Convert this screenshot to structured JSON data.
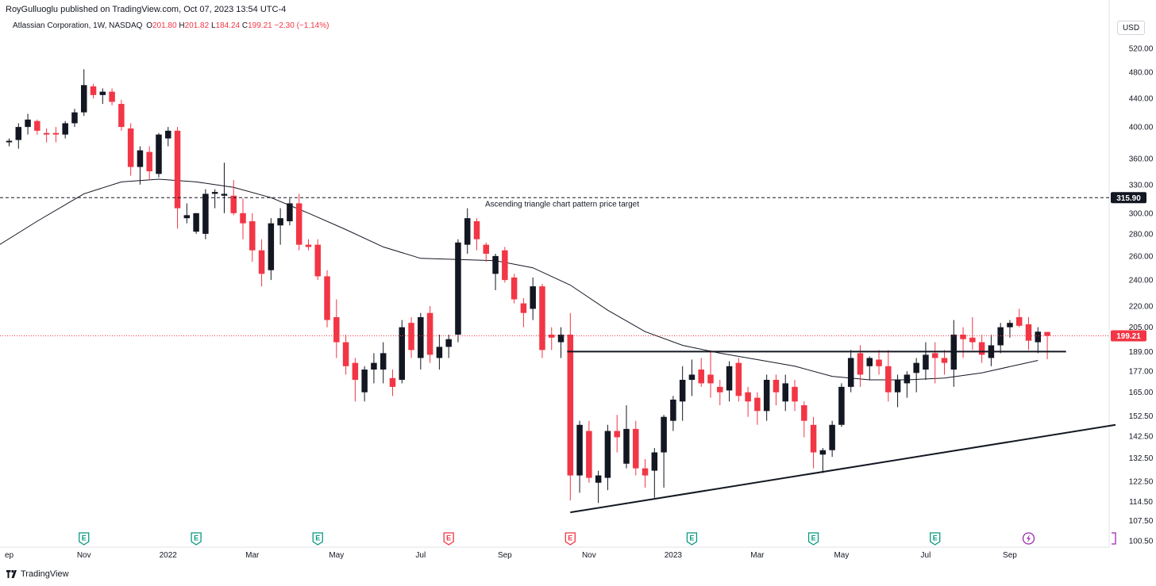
{
  "header": {
    "publisher": "RoyGulluoglu published on TradingView.com, Oct 07, 2023 13:54 UTC-4"
  },
  "legend": {
    "symbol": "Atlassian Corporation, 1W, NASDAQ",
    "open_label": "O",
    "open": "201.80",
    "high_label": "H",
    "high": "201.82",
    "low_label": "L",
    "low": "184.24",
    "close_label": "C",
    "close": "199.21",
    "change": "−2.30 (−1.14%)"
  },
  "currency_button": "USD",
  "footer": {
    "brand": "TradingView"
  },
  "colors": {
    "up": "#131722",
    "down": "#f23645",
    "ma": "#131722",
    "event_green": "#089981",
    "event_red": "#f23645",
    "event_purple": "#9c27b0"
  },
  "chart_data": {
    "type": "candlestick",
    "scale": "log",
    "ylim": [
      98,
      560
    ],
    "y_ticks": [
      "520.00",
      "480.00",
      "440.00",
      "400.00",
      "360.00",
      "330.00",
      "300.00",
      "280.00",
      "260.00",
      "240.00",
      "220.00",
      "205.00",
      "189.00",
      "177.00",
      "165.00",
      "152.50",
      "142.50",
      "132.50",
      "122.50",
      "114.50",
      "107.50",
      "100.50"
    ],
    "x_ticks": [
      {
        "i": 0,
        "label": "ep"
      },
      {
        "i": 8,
        "label": "Nov"
      },
      {
        "i": 17,
        "label": "2022"
      },
      {
        "i": 26,
        "label": "Mar"
      },
      {
        "i": 35,
        "label": "May"
      },
      {
        "i": 44,
        "label": "Jul"
      },
      {
        "i": 53,
        "label": "Sep"
      },
      {
        "i": 62,
        "label": "Nov"
      },
      {
        "i": 71,
        "label": "2023"
      },
      {
        "i": 80,
        "label": "Mar"
      },
      {
        "i": 89,
        "label": "May"
      },
      {
        "i": 98,
        "label": "Jul"
      },
      {
        "i": 107,
        "label": "Sep"
      }
    ],
    "candles": [
      [
        380,
        385,
        375,
        382
      ],
      [
        383,
        405,
        372,
        400
      ],
      [
        400,
        418,
        390,
        410
      ],
      [
        408,
        410,
        390,
        395
      ],
      [
        392,
        398,
        380,
        390
      ],
      [
        392,
        400,
        380,
        390
      ],
      [
        390,
        408,
        385,
        405
      ],
      [
        405,
        425,
        400,
        420
      ],
      [
        420,
        485,
        415,
        460
      ],
      [
        458,
        462,
        440,
        445
      ],
      [
        445,
        455,
        432,
        450
      ],
      [
        450,
        455,
        430,
        435
      ],
      [
        432,
        438,
        395,
        400
      ],
      [
        398,
        405,
        340,
        350
      ],
      [
        350,
        375,
        330,
        370
      ],
      [
        368,
        375,
        335,
        345
      ],
      [
        342,
        392,
        338,
        390
      ],
      [
        385,
        400,
        375,
        395
      ],
      [
        395,
        400,
        285,
        305
      ],
      [
        295,
        310,
        290,
        298
      ],
      [
        282,
        300,
        280,
        300
      ],
      [
        280,
        325,
        275,
        320
      ],
      [
        320,
        325,
        305,
        322
      ],
      [
        318,
        355,
        300,
        320
      ],
      [
        318,
        335,
        298,
        300
      ],
      [
        300,
        315,
        275,
        290
      ],
      [
        292,
        300,
        255,
        265
      ],
      [
        265,
        275,
        235,
        245
      ],
      [
        248,
        295,
        240,
        290
      ],
      [
        288,
        305,
        270,
        295
      ],
      [
        292,
        315,
        288,
        310
      ],
      [
        310,
        320,
        265,
        270
      ],
      [
        270,
        275,
        265,
        268
      ],
      [
        270,
        275,
        240,
        243
      ],
      [
        243,
        248,
        205,
        210
      ],
      [
        212,
        225,
        185,
        195
      ],
      [
        195,
        200,
        175,
        180
      ],
      [
        182,
        185,
        160,
        172
      ],
      [
        165,
        180,
        160,
        178
      ],
      [
        178,
        188,
        170,
        182
      ],
      [
        178,
        195,
        170,
        188
      ],
      [
        173,
        178,
        163,
        168
      ],
      [
        172,
        210,
        170,
        205
      ],
      [
        208,
        212,
        185,
        190
      ],
      [
        185,
        215,
        178,
        212
      ],
      [
        215,
        220,
        182,
        187
      ],
      [
        185,
        200,
        178,
        192
      ],
      [
        192,
        200,
        185,
        197
      ],
      [
        200,
        275,
        195,
        272
      ],
      [
        270,
        305,
        262,
        295
      ],
      [
        292,
        295,
        265,
        275
      ],
      [
        270,
        272,
        255,
        262
      ],
      [
        245,
        262,
        232,
        260
      ],
      [
        265,
        268,
        238,
        240
      ],
      [
        242,
        245,
        222,
        225
      ],
      [
        222,
        226,
        205,
        215
      ],
      [
        218,
        242,
        210,
        235
      ],
      [
        235,
        237,
        185,
        190
      ],
      [
        200,
        205,
        190,
        198
      ],
      [
        195,
        205,
        185,
        200
      ],
      [
        200,
        215,
        115,
        125
      ],
      [
        125,
        150,
        118,
        148
      ],
      [
        145,
        150,
        122,
        124
      ],
      [
        122,
        127,
        114,
        125
      ],
      [
        124,
        148,
        119,
        145
      ],
      [
        145,
        153,
        135,
        142
      ],
      [
        130,
        158,
        128,
        146
      ],
      [
        146,
        150,
        125,
        128
      ],
      [
        128,
        132,
        120,
        125
      ],
      [
        127,
        137,
        116,
        135
      ],
      [
        135,
        153,
        120,
        152
      ],
      [
        150,
        163,
        145,
        161
      ],
      [
        160,
        180,
        150,
        172
      ],
      [
        172,
        184,
        163,
        175
      ],
      [
        178,
        185,
        168,
        170
      ],
      [
        175,
        190,
        162,
        170
      ],
      [
        168,
        172,
        158,
        165
      ],
      [
        166,
        183,
        160,
        180
      ],
      [
        182,
        185,
        160,
        163
      ],
      [
        165,
        168,
        152,
        160
      ],
      [
        162,
        165,
        148,
        155
      ],
      [
        155,
        175,
        150,
        172
      ],
      [
        172,
        175,
        158,
        165
      ],
      [
        160,
        175,
        155,
        170
      ],
      [
        168,
        172,
        155,
        160
      ],
      [
        158,
        160,
        142,
        150
      ],
      [
        148,
        152,
        128,
        135
      ],
      [
        134,
        137,
        126,
        136
      ],
      [
        136,
        150,
        133,
        148
      ],
      [
        148,
        170,
        147,
        168
      ],
      [
        168,
        190,
        165,
        185
      ],
      [
        188,
        193,
        168,
        175
      ],
      [
        180,
        186,
        172,
        185
      ],
      [
        184,
        190,
        175,
        180
      ],
      [
        180,
        190,
        160,
        165
      ],
      [
        165,
        175,
        157,
        172
      ],
      [
        170,
        177,
        162,
        175
      ],
      [
        176,
        185,
        165,
        182
      ],
      [
        178,
        195,
        172,
        187
      ],
      [
        188,
        195,
        170,
        185
      ],
      [
        185,
        190,
        175,
        182
      ],
      [
        178,
        210,
        168,
        200
      ],
      [
        200,
        205,
        185,
        197
      ],
      [
        198,
        212,
        190,
        195
      ],
      [
        195,
        200,
        182,
        187
      ],
      [
        185,
        200,
        180,
        193
      ],
      [
        193,
        208,
        188,
        205
      ],
      [
        205,
        210,
        198,
        208
      ],
      [
        212,
        218,
        205,
        206
      ],
      [
        207,
        212,
        190,
        196
      ],
      [
        195,
        205,
        188,
        202
      ],
      [
        201.8,
        201.82,
        184.24,
        199.21
      ]
    ],
    "ma_period": 30,
    "ma": [
      [
        -2,
        265
      ],
      [
        3,
        292
      ],
      [
        8,
        320
      ],
      [
        12,
        333
      ],
      [
        16,
        336
      ],
      [
        20,
        333
      ],
      [
        24,
        327
      ],
      [
        28,
        316
      ],
      [
        32,
        300
      ],
      [
        36,
        284
      ],
      [
        40,
        268
      ],
      [
        44,
        258
      ],
      [
        48,
        257
      ],
      [
        52,
        256
      ],
      [
        56,
        250
      ],
      [
        60,
        236
      ],
      [
        64,
        217
      ],
      [
        68,
        202
      ],
      [
        72,
        193
      ],
      [
        76,
        188
      ],
      [
        80,
        184
      ],
      [
        84,
        180
      ],
      [
        88,
        174
      ],
      [
        92,
        172
      ],
      [
        96,
        172
      ],
      [
        100,
        173
      ],
      [
        104,
        176
      ],
      [
        108,
        181
      ],
      [
        110,
        183.5
      ]
    ],
    "annotations": {
      "price_target_line": {
        "value": 315.9,
        "label": "315.90"
      },
      "target_text": "Ascending triangle chart pattern price target",
      "resistance": {
        "value": 189,
        "from": 60,
        "to": 113
      },
      "support_trendline": {
        "from": [
          60,
          110.5
        ],
        "to": [
          113,
          148
        ]
      },
      "last_price": {
        "value": 199.21,
        "label": "199.21"
      }
    },
    "events": [
      {
        "i": 8,
        "kind": "E",
        "color": "green"
      },
      {
        "i": 20,
        "kind": "E",
        "color": "green"
      },
      {
        "i": 33,
        "kind": "E",
        "color": "green"
      },
      {
        "i": 47,
        "kind": "E",
        "color": "red"
      },
      {
        "i": 60,
        "kind": "E",
        "color": "red"
      },
      {
        "i": 73,
        "kind": "E",
        "color": "green"
      },
      {
        "i": 86,
        "kind": "E",
        "color": "green"
      },
      {
        "i": 99,
        "kind": "E",
        "color": "green"
      },
      {
        "i": 109,
        "kind": "bolt",
        "color": "purple"
      }
    ]
  }
}
